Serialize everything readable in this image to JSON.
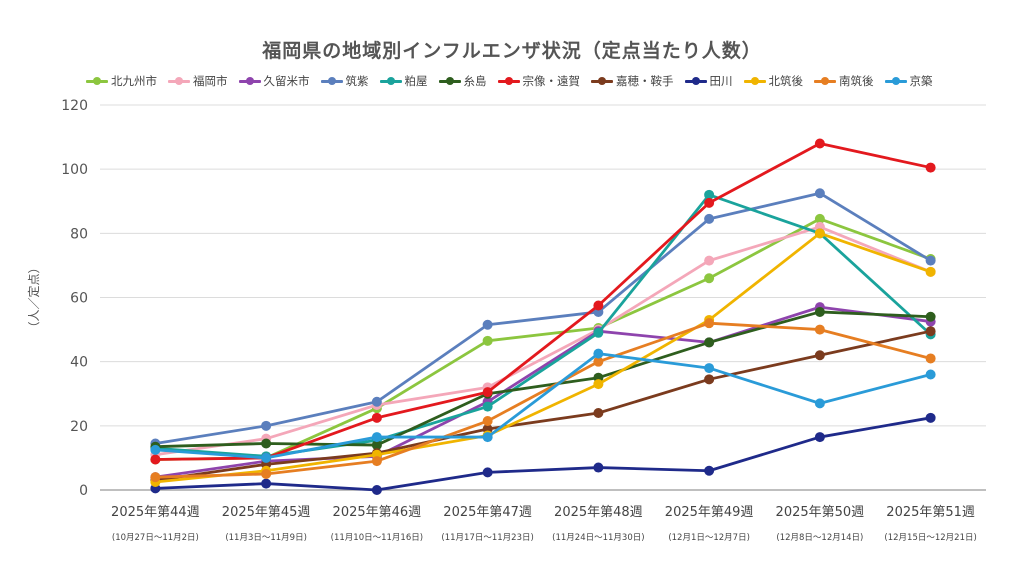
{
  "chart_data": {
    "type": "line",
    "title": "福岡県の地域別インフルエンザ状況（定点当たり人数）",
    "ylabel": "（人／定点）",
    "xlabel": "",
    "ylim": [
      0,
      120
    ],
    "yticks": [
      "0",
      "20",
      "40",
      "60",
      "80",
      "100",
      "120"
    ],
    "grid": true,
    "legend_position": "top",
    "categories": [
      "2025年第44週",
      "2025年第45週",
      "2025年第46週",
      "2025年第47週",
      "2025年第48週",
      "2025年第49週",
      "2025年第50週",
      "2025年第51週"
    ],
    "category_subtitles": [
      "(10月27日～11月2日)",
      "(11月3日～11月9日)",
      "(11月10日～11月16日)",
      "(11月17日～11月23日)",
      "(11月24日～11月30日)",
      "(12月1日～12月7日)",
      "(12月8日～12月14日)",
      "(12月15日～12月21日)"
    ],
    "series": [
      {
        "name": "北九州市",
        "color": "#8cc63f",
        "values": [
          9.5,
          10,
          25.5,
          46.5,
          50.5,
          66,
          84.5,
          72
        ]
      },
      {
        "name": "福岡市",
        "color": "#f4a7b9",
        "values": [
          11,
          16,
          26.5,
          32,
          50,
          71.5,
          82,
          68
        ]
      },
      {
        "name": "久留米市",
        "color": "#8e44ad",
        "values": [
          4,
          9,
          10.5,
          27.5,
          49.5,
          46,
          57,
          52.5
        ]
      },
      {
        "name": "筑紫",
        "color": "#5b7fbd",
        "values": [
          14.5,
          20,
          27.5,
          51.5,
          55.5,
          84.5,
          92.5,
          71.5
        ]
      },
      {
        "name": "粕屋",
        "color": "#1aa39c",
        "values": [
          13,
          10.5,
          15.5,
          26,
          49,
          92,
          80,
          48.5
        ]
      },
      {
        "name": "糸島",
        "color": "#2e5e1e",
        "values": [
          13.5,
          14.5,
          14,
          30,
          35,
          46,
          55.5,
          54
        ]
      },
      {
        "name": "宗像・遠賀",
        "color": "#e3191e",
        "values": [
          9.5,
          10,
          22.5,
          30.5,
          57.5,
          89.5,
          108,
          100.5
        ]
      },
      {
        "name": "嘉穂・鞍手",
        "color": "#7b3b1e",
        "values": [
          3,
          8,
          11.5,
          19,
          24,
          34.5,
          42,
          49.5
        ]
      },
      {
        "name": "田川",
        "color": "#1f2a8a",
        "values": [
          0.5,
          2,
          0,
          5.5,
          7,
          6,
          16.5,
          22.5
        ]
      },
      {
        "name": "北筑後",
        "color": "#f0b400",
        "values": [
          2.5,
          6,
          11,
          17,
          33,
          53,
          80,
          68
        ]
      },
      {
        "name": "南筑後",
        "color": "#e67e22",
        "values": [
          4,
          5,
          9,
          21.5,
          40,
          52,
          50,
          41
        ]
      },
      {
        "name": "京築",
        "color": "#2a9bd8",
        "values": [
          12.5,
          10,
          16.5,
          16.5,
          42.5,
          38,
          27,
          36
        ]
      }
    ]
  }
}
